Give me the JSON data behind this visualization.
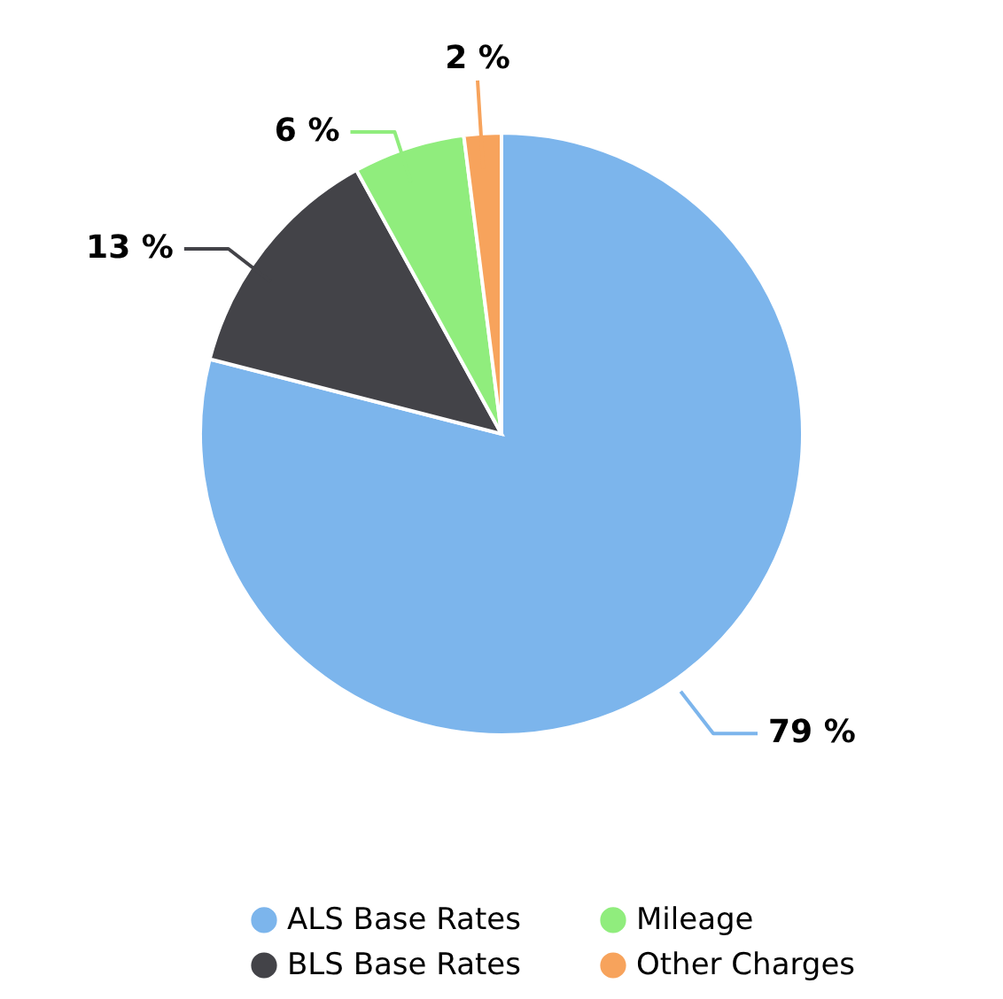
{
  "chart_data": {
    "type": "pie",
    "categories": [
      "ALS Base Rates",
      "BLS Base Rates",
      "Mileage",
      "Other Charges"
    ],
    "values": [
      79,
      13,
      6,
      2
    ],
    "colors": [
      "#7cb5ec",
      "#434348",
      "#90ed7d",
      "#f7a35c"
    ],
    "value_labels": [
      "79 %",
      "13 %",
      "6 %",
      "2 %"
    ],
    "legend": "bottom"
  }
}
